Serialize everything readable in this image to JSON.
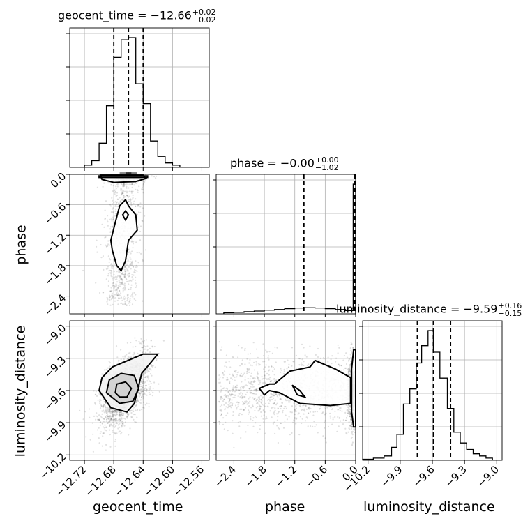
{
  "chart_data": {
    "type": "corner",
    "parameters": [
      "geocent_time",
      "phase",
      "luminosity_distance"
    ],
    "titles": [
      {
        "param": "geocent_time",
        "median": "−12.66",
        "plus": "+0.02",
        "minus": "−0.02"
      },
      {
        "param": "phase",
        "median": "−0.00",
        "plus": "+0.00",
        "minus": "−1.02"
      },
      {
        "param": "luminosity_distance",
        "median": "−9.59",
        "plus": "+0.16",
        "minus": "−0.15"
      }
    ],
    "ranges": {
      "geocent_time": [
        -12.74,
        -12.55
      ],
      "phase": [
        -2.75,
        0.0
      ],
      "luminosity_distance": [
        -10.25,
        -8.95
      ]
    },
    "ticks": {
      "geocent_time": [
        -12.72,
        -12.68,
        -12.64,
        -12.6,
        -12.56
      ],
      "phase": [
        -2.4,
        -1.8,
        -1.2,
        -0.6,
        0.0
      ],
      "luminosity_distance": [
        -10.2,
        -9.9,
        -9.6,
        -9.3,
        -9.0
      ]
    },
    "tick_labels": {
      "geocent_time": [
        "−12.72",
        "−12.68",
        "−12.64",
        "−12.60",
        "−12.56"
      ],
      "phase": [
        "−2.4",
        "−1.8",
        "−1.2",
        "−0.6",
        "0.0"
      ],
      "luminosity_distance": [
        "−10.2",
        "−9.9",
        "−9.6",
        "−9.3",
        "−9.0"
      ]
    },
    "quantiles": {
      "geocent_time": [
        -12.68,
        -12.66,
        -12.64
      ],
      "phase": [
        -1.02,
        -0.0,
        0.0
      ],
      "luminosity_distance": [
        -9.74,
        -9.59,
        -9.43
      ]
    },
    "histograms": {
      "geocent_time": {
        "edges": [
          -12.72,
          -12.71,
          -12.7,
          -12.69,
          -12.68,
          -12.67,
          -12.66,
          -12.65,
          -12.64,
          -12.63,
          -12.62,
          -12.61,
          -12.6,
          -12.59
        ],
        "counts": [
          1,
          3,
          11,
          28,
          50,
          58,
          59,
          38,
          29,
          12,
          5,
          2,
          1
        ]
      },
      "phase": {
        "edges": [
          -2.6,
          -2.4,
          -2.2,
          -2.0,
          -1.8,
          -1.6,
          -1.4,
          -1.2,
          -1.0,
          -0.8,
          -0.6,
          -0.4,
          -0.2,
          -0.05,
          0.0
        ],
        "counts": [
          0.5,
          0.7,
          1,
          1.3,
          1.7,
          2,
          2.4,
          2.7,
          2.8,
          2.7,
          2.4,
          2,
          1.5,
          60
        ]
      },
      "luminosity_distance": {
        "edges": [
          -10.25,
          -10.15,
          -10.05,
          -9.98,
          -9.93,
          -9.87,
          -9.81,
          -9.75,
          -9.7,
          -9.64,
          -9.59,
          -9.53,
          -9.46,
          -9.4,
          -9.34,
          -9.28,
          -9.22,
          -9.16,
          -9.1,
          -9.04
        ],
        "counts": [
          0.5,
          1,
          2,
          6,
          12,
          26,
          33,
          45,
          53,
          60,
          50,
          38,
          24,
          13,
          8,
          5,
          3,
          2,
          1
        ]
      }
    },
    "grid": true
  }
}
